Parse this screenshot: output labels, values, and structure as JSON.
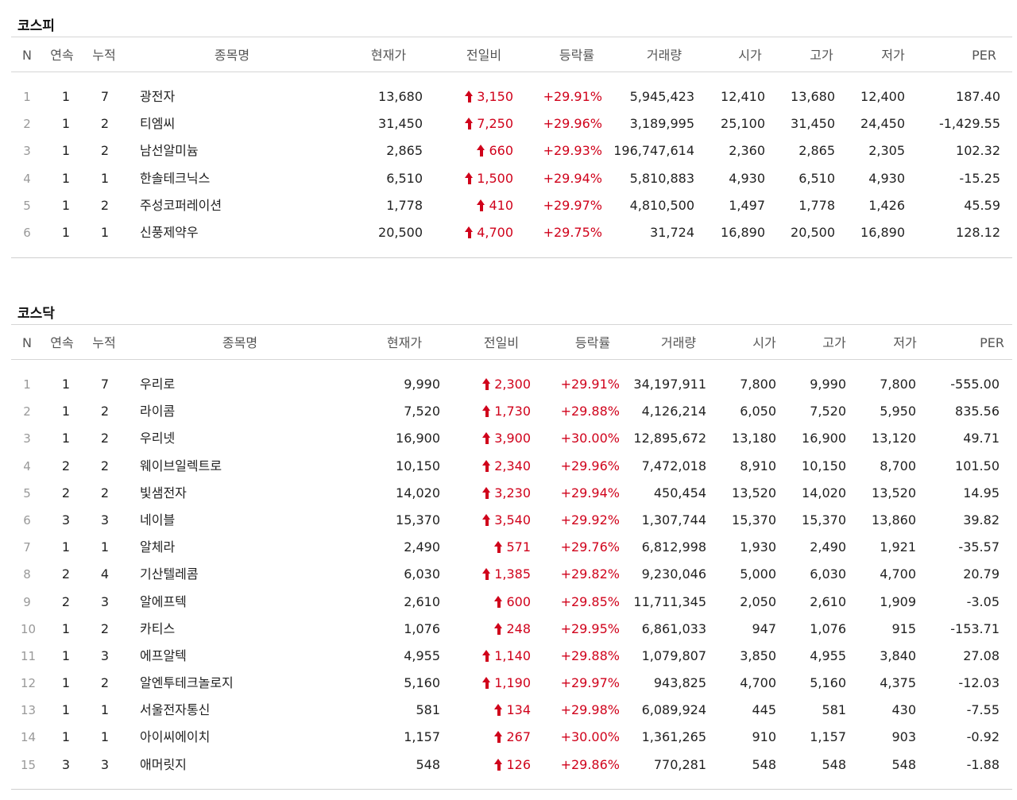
{
  "kospi": {
    "title": "코스피",
    "headers": {
      "n": "N",
      "streak": "연속",
      "total": "누적",
      "name": "종목명",
      "price": "현재가",
      "change": "전일비",
      "rate": "등락률",
      "volume": "거래량",
      "open": "시가",
      "high": "고가",
      "low": "저가",
      "per": "PER"
    },
    "rows": [
      {
        "n": "1",
        "streak": "1",
        "total": "7",
        "name": "광전자",
        "price": "13,680",
        "change": "3,150",
        "rate": "+29.91%",
        "volume": "5,945,423",
        "open": "12,410",
        "high": "13,680",
        "low": "12,400",
        "per": "187.40"
      },
      {
        "n": "2",
        "streak": "1",
        "total": "2",
        "name": "티엠씨",
        "price": "31,450",
        "change": "7,250",
        "rate": "+29.96%",
        "volume": "3,189,995",
        "open": "25,100",
        "high": "31,450",
        "low": "24,450",
        "per": "-1,429.55"
      },
      {
        "n": "3",
        "streak": "1",
        "total": "2",
        "name": "남선알미늄",
        "price": "2,865",
        "change": "660",
        "rate": "+29.93%",
        "volume": "196,747,614",
        "open": "2,360",
        "high": "2,865",
        "low": "2,305",
        "per": "102.32"
      },
      {
        "n": "4",
        "streak": "1",
        "total": "1",
        "name": "한솔테크닉스",
        "price": "6,510",
        "change": "1,500",
        "rate": "+29.94%",
        "volume": "5,810,883",
        "open": "4,930",
        "high": "6,510",
        "low": "4,930",
        "per": "-15.25"
      },
      {
        "n": "5",
        "streak": "1",
        "total": "2",
        "name": "주성코퍼레이션",
        "price": "1,778",
        "change": "410",
        "rate": "+29.97%",
        "volume": "4,810,500",
        "open": "1,497",
        "high": "1,778",
        "low": "1,426",
        "per": "45.59"
      },
      {
        "n": "6",
        "streak": "1",
        "total": "1",
        "name": "신풍제약우",
        "price": "20,500",
        "change": "4,700",
        "rate": "+29.75%",
        "volume": "31,724",
        "open": "16,890",
        "high": "20,500",
        "low": "16,890",
        "per": "128.12"
      }
    ]
  },
  "kosdaq": {
    "title": "코스닥",
    "headers": {
      "n": "N",
      "streak": "연속",
      "total": "누적",
      "name": "종목명",
      "price": "현재가",
      "change": "전일비",
      "rate": "등락률",
      "volume": "거래량",
      "open": "시가",
      "high": "고가",
      "low": "저가",
      "per": "PER"
    },
    "rows": [
      {
        "n": "1",
        "streak": "1",
        "total": "7",
        "name": "우리로",
        "price": "9,990",
        "change": "2,300",
        "rate": "+29.91%",
        "volume": "34,197,911",
        "open": "7,800",
        "high": "9,990",
        "low": "7,800",
        "per": "-555.00"
      },
      {
        "n": "2",
        "streak": "1",
        "total": "2",
        "name": "라이콤",
        "price": "7,520",
        "change": "1,730",
        "rate": "+29.88%",
        "volume": "4,126,214",
        "open": "6,050",
        "high": "7,520",
        "low": "5,950",
        "per": "835.56"
      },
      {
        "n": "3",
        "streak": "1",
        "total": "2",
        "name": "우리넷",
        "price": "16,900",
        "change": "3,900",
        "rate": "+30.00%",
        "volume": "12,895,672",
        "open": "13,180",
        "high": "16,900",
        "low": "13,120",
        "per": "49.71"
      },
      {
        "n": "4",
        "streak": "2",
        "total": "2",
        "name": "웨이브일렉트로",
        "price": "10,150",
        "change": "2,340",
        "rate": "+29.96%",
        "volume": "7,472,018",
        "open": "8,910",
        "high": "10,150",
        "low": "8,700",
        "per": "101.50"
      },
      {
        "n": "5",
        "streak": "2",
        "total": "2",
        "name": "빛샘전자",
        "price": "14,020",
        "change": "3,230",
        "rate": "+29.94%",
        "volume": "450,454",
        "open": "13,520",
        "high": "14,020",
        "low": "13,520",
        "per": "14.95"
      },
      {
        "n": "6",
        "streak": "3",
        "total": "3",
        "name": "네이블",
        "price": "15,370",
        "change": "3,540",
        "rate": "+29.92%",
        "volume": "1,307,744",
        "open": "15,370",
        "high": "15,370",
        "low": "13,860",
        "per": "39.82"
      },
      {
        "n": "7",
        "streak": "1",
        "total": "1",
        "name": "알체라",
        "price": "2,490",
        "change": "571",
        "rate": "+29.76%",
        "volume": "6,812,998",
        "open": "1,930",
        "high": "2,490",
        "low": "1,921",
        "per": "-35.57"
      },
      {
        "n": "8",
        "streak": "2",
        "total": "4",
        "name": "기산텔레콤",
        "price": "6,030",
        "change": "1,385",
        "rate": "+29.82%",
        "volume": "9,230,046",
        "open": "5,000",
        "high": "6,030",
        "low": "4,700",
        "per": "20.79"
      },
      {
        "n": "9",
        "streak": "2",
        "total": "3",
        "name": "알에프텍",
        "price": "2,610",
        "change": "600",
        "rate": "+29.85%",
        "volume": "11,711,345",
        "open": "2,050",
        "high": "2,610",
        "low": "1,909",
        "per": "-3.05"
      },
      {
        "n": "10",
        "streak": "1",
        "total": "2",
        "name": "카티스",
        "price": "1,076",
        "change": "248",
        "rate": "+29.95%",
        "volume": "6,861,033",
        "open": "947",
        "high": "1,076",
        "low": "915",
        "per": "-153.71"
      },
      {
        "n": "11",
        "streak": "1",
        "total": "3",
        "name": "에프알텍",
        "price": "4,955",
        "change": "1,140",
        "rate": "+29.88%",
        "volume": "1,079,807",
        "open": "3,850",
        "high": "4,955",
        "low": "3,840",
        "per": "27.08"
      },
      {
        "n": "12",
        "streak": "1",
        "total": "2",
        "name": "알엔투테크놀로지",
        "price": "5,160",
        "change": "1,190",
        "rate": "+29.97%",
        "volume": "943,825",
        "open": "4,700",
        "high": "5,160",
        "low": "4,375",
        "per": "-12.03"
      },
      {
        "n": "13",
        "streak": "1",
        "total": "1",
        "name": "서울전자통신",
        "price": "581",
        "change": "134",
        "rate": "+29.98%",
        "volume": "6,089,924",
        "open": "445",
        "high": "581",
        "low": "430",
        "per": "-7.55"
      },
      {
        "n": "14",
        "streak": "1",
        "total": "1",
        "name": "아이씨에이치",
        "price": "1,157",
        "change": "267",
        "rate": "+30.00%",
        "volume": "1,361,265",
        "open": "910",
        "high": "1,157",
        "low": "903",
        "per": "-0.92"
      },
      {
        "n": "15",
        "streak": "3",
        "total": "3",
        "name": "애머릿지",
        "price": "548",
        "change": "126",
        "rate": "+29.86%",
        "volume": "770,281",
        "open": "548",
        "high": "548",
        "low": "548",
        "per": "-1.88"
      }
    ]
  },
  "colors": {
    "up": "#d0021b",
    "rule": "#d6d6d6",
    "header_text": "#555555",
    "index_text": "#999999"
  },
  "icons": {
    "change_up": "red-up-arrow-icon"
  }
}
